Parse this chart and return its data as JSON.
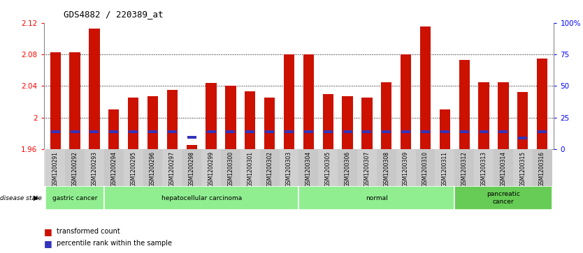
{
  "title": "GDS4882 / 220389_at",
  "samples": [
    "GSM1200291",
    "GSM1200292",
    "GSM1200293",
    "GSM1200294",
    "GSM1200295",
    "GSM1200296",
    "GSM1200297",
    "GSM1200298",
    "GSM1200299",
    "GSM1200300",
    "GSM1200301",
    "GSM1200302",
    "GSM1200303",
    "GSM1200304",
    "GSM1200305",
    "GSM1200306",
    "GSM1200307",
    "GSM1200308",
    "GSM1200309",
    "GSM1200310",
    "GSM1200311",
    "GSM1200312",
    "GSM1200313",
    "GSM1200314",
    "GSM1200315",
    "GSM1200316"
  ],
  "red_values": [
    2.083,
    2.083,
    2.113,
    2.01,
    2.025,
    2.027,
    2.035,
    1.965,
    2.044,
    2.04,
    2.033,
    2.025,
    2.08,
    2.08,
    2.03,
    2.027,
    2.025,
    2.045,
    2.08,
    2.115,
    2.01,
    2.073,
    2.045,
    2.045,
    2.032,
    2.075
  ],
  "blue_values": [
    1.982,
    1.982,
    1.982,
    1.982,
    1.982,
    1.982,
    1.982,
    1.975,
    1.982,
    1.982,
    1.982,
    1.982,
    1.982,
    1.982,
    1.982,
    1.982,
    1.982,
    1.982,
    1.982,
    1.982,
    1.982,
    1.982,
    1.982,
    1.982,
    1.974,
    1.982
  ],
  "ymin": 1.96,
  "ymax": 2.12,
  "right_yticks": [
    0,
    25,
    50,
    75,
    100
  ],
  "right_yticklabels": [
    "0",
    "25",
    "50",
    "75",
    "100%"
  ],
  "left_yticks": [
    1.96,
    2.0,
    2.04,
    2.08,
    2.12
  ],
  "left_yticklabels": [
    "1.96",
    "2",
    "2.04",
    "2.08",
    "2.12"
  ],
  "disease_groups": [
    {
      "label": "gastric cancer",
      "start": 0,
      "end": 3
    },
    {
      "label": "hepatocellular carcinoma",
      "start": 3,
      "end": 13
    },
    {
      "label": "normal",
      "start": 13,
      "end": 21
    },
    {
      "label": "pancreatic\ncancer",
      "start": 21,
      "end": 26
    }
  ],
  "group_colors": [
    "#90EE90",
    "#90EE90",
    "#90EE90",
    "#66CC55"
  ],
  "bar_color": "#CC1100",
  "blue_color": "#3333BB",
  "legend_red": "transformed count",
  "legend_blue": "percentile rank within the sample",
  "bar_width": 0.55
}
